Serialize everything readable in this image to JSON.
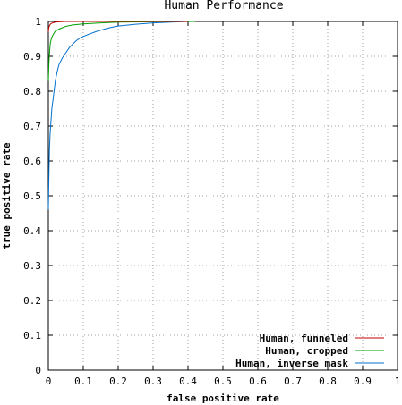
{
  "chart_data": {
    "type": "line",
    "title": "Human Performance",
    "xlabel": "false positive rate",
    "ylabel": "true positive rate",
    "xlim": [
      0,
      1
    ],
    "ylim": [
      0,
      1
    ],
    "grid": true,
    "legend_position": "bottom-right",
    "x_ticks": [
      "0",
      "0.1",
      "0.2",
      "0.3",
      "0.4",
      "0.5",
      "0.6",
      "0.7",
      "0.8",
      "0.9",
      "1"
    ],
    "y_ticks": [
      "0",
      "0.1",
      "0.2",
      "0.3",
      "0.4",
      "0.5",
      "0.6",
      "0.7",
      "0.8",
      "0.9",
      "1"
    ],
    "series": [
      {
        "name": "Human, funneled",
        "color": "#c00000",
        "x": [
          0,
          0.001,
          0.002,
          0.004,
          0.006,
          0.008,
          0.01,
          0.015,
          0.02,
          0.03,
          0.05,
          0.1,
          0.2,
          0.4
        ],
        "y": [
          0.97,
          0.98,
          0.985,
          0.99,
          0.992,
          0.994,
          0.995,
          0.997,
          0.998,
          0.999,
          1.0,
          1.0,
          1.0,
          1.0
        ]
      },
      {
        "name": "Human, cropped",
        "color": "#00a000",
        "x": [
          0,
          0.002,
          0.004,
          0.006,
          0.01,
          0.015,
          0.02,
          0.03,
          0.04,
          0.05,
          0.07,
          0.1,
          0.15,
          0.2,
          0.3,
          0.42
        ],
        "y": [
          0.83,
          0.89,
          0.92,
          0.94,
          0.955,
          0.965,
          0.972,
          0.978,
          0.982,
          0.986,
          0.99,
          0.993,
          0.996,
          0.998,
          0.999,
          1.0
        ]
      },
      {
        "name": "Human, inverse mask",
        "color": "#0070d0",
        "x": [
          0,
          0.001,
          0.002,
          0.003,
          0.005,
          0.008,
          0.01,
          0.015,
          0.02,
          0.025,
          0.03,
          0.04,
          0.05,
          0.06,
          0.07,
          0.08,
          0.09,
          0.1,
          0.12,
          0.14,
          0.16,
          0.18,
          0.2,
          0.25,
          0.3,
          0.35,
          0.4
        ],
        "y": [
          0.46,
          0.52,
          0.58,
          0.63,
          0.68,
          0.72,
          0.75,
          0.79,
          0.83,
          0.855,
          0.875,
          0.895,
          0.91,
          0.925,
          0.935,
          0.945,
          0.952,
          0.957,
          0.965,
          0.972,
          0.978,
          0.983,
          0.987,
          0.992,
          0.996,
          0.998,
          1.0
        ]
      }
    ]
  }
}
